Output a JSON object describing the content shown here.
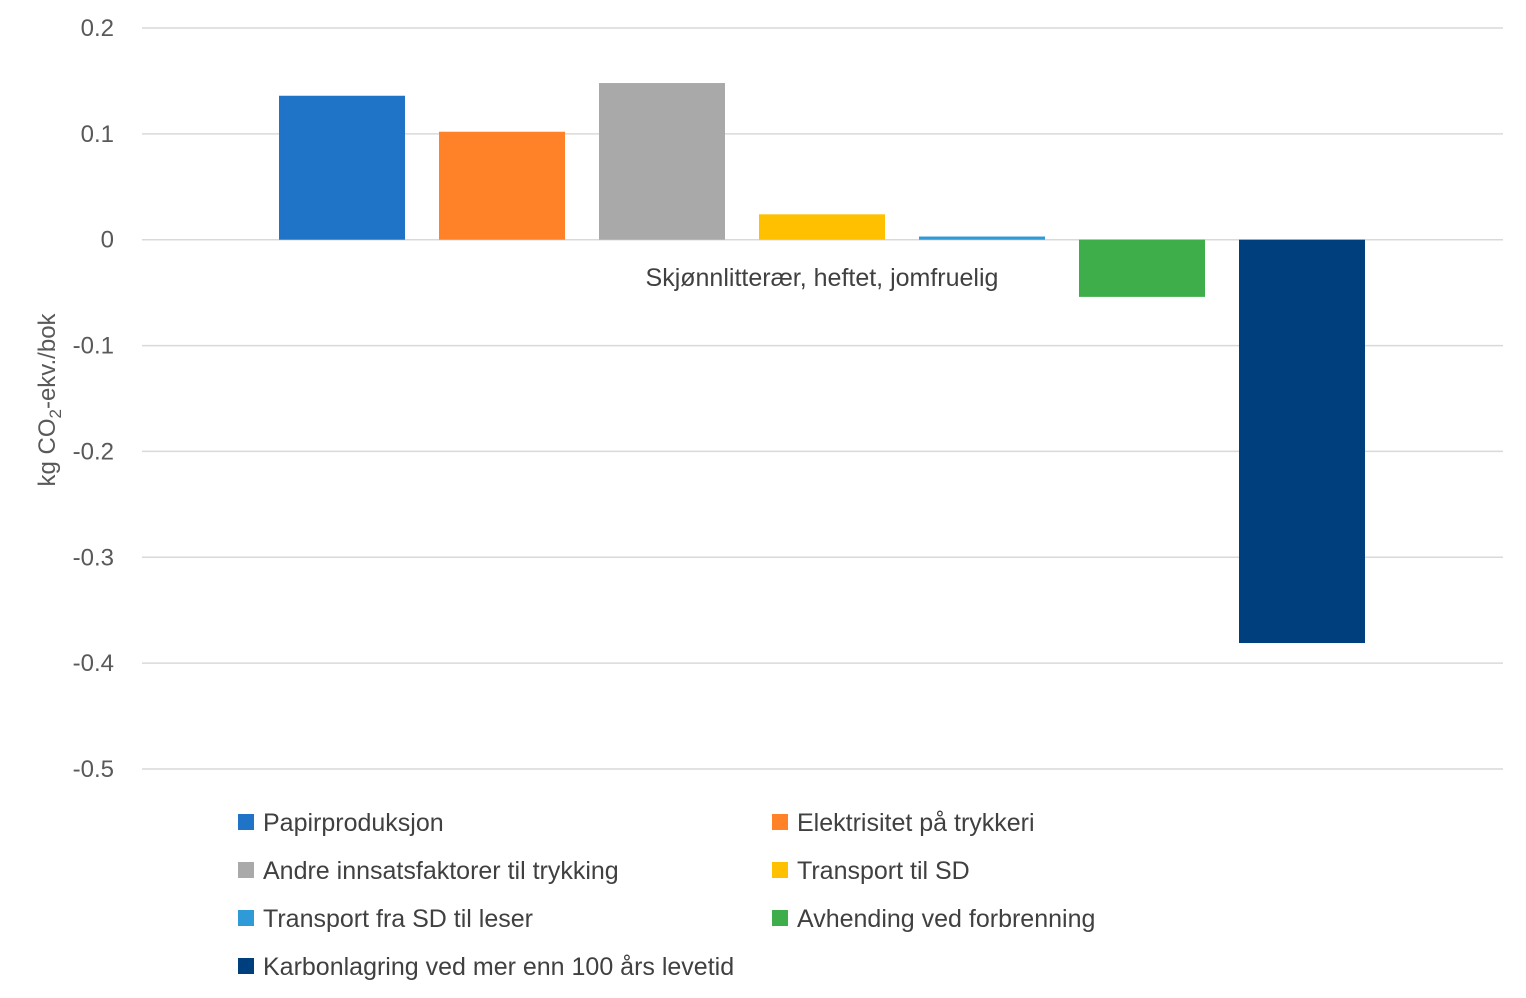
{
  "chart_data": {
    "type": "bar",
    "title": "",
    "category_label": "Skjønnlitterær, heftet, jomfruelig",
    "categories": [
      "Skjønnlitterær, heftet, jomfruelig"
    ],
    "xlabel": "",
    "ylabel": {
      "prefix": "kg CO",
      "subscript": "2",
      "suffix": "-ekv./bok"
    },
    "ylim": [
      -0.5,
      0.2
    ],
    "yticks": [
      0.2,
      0.1,
      0,
      -0.1,
      -0.2,
      -0.3,
      -0.4,
      -0.5
    ],
    "ytick_labels": [
      "0.2",
      "0.1",
      "0",
      "-0.1",
      "-0.2",
      "-0.3",
      "-0.4",
      "-0.5"
    ],
    "grid": true,
    "legend_position": "bottom",
    "series": [
      {
        "name": "Papirproduksjon",
        "values": [
          0.136
        ],
        "color": "#1F74C8"
      },
      {
        "name": "Elektrisitet på trykkeri",
        "values": [
          0.102
        ],
        "color": "#FF8229"
      },
      {
        "name": "Andre innsatsfaktorer til trykking",
        "values": [
          0.148
        ],
        "color": "#A9A9A9"
      },
      {
        "name": "Transport til SD",
        "values": [
          0.024
        ],
        "color": "#FFC000"
      },
      {
        "name": "Transport fra SD til leser",
        "values": [
          0.003
        ],
        "color": "#2E9AD8"
      },
      {
        "name": "Avhending ved forbrenning",
        "values": [
          -0.054
        ],
        "color": "#3EAE4A"
      },
      {
        "name": "Karbonlagring ved mer enn 100 års levetid",
        "values": [
          -0.381
        ],
        "color": "#003F7D"
      }
    ]
  }
}
